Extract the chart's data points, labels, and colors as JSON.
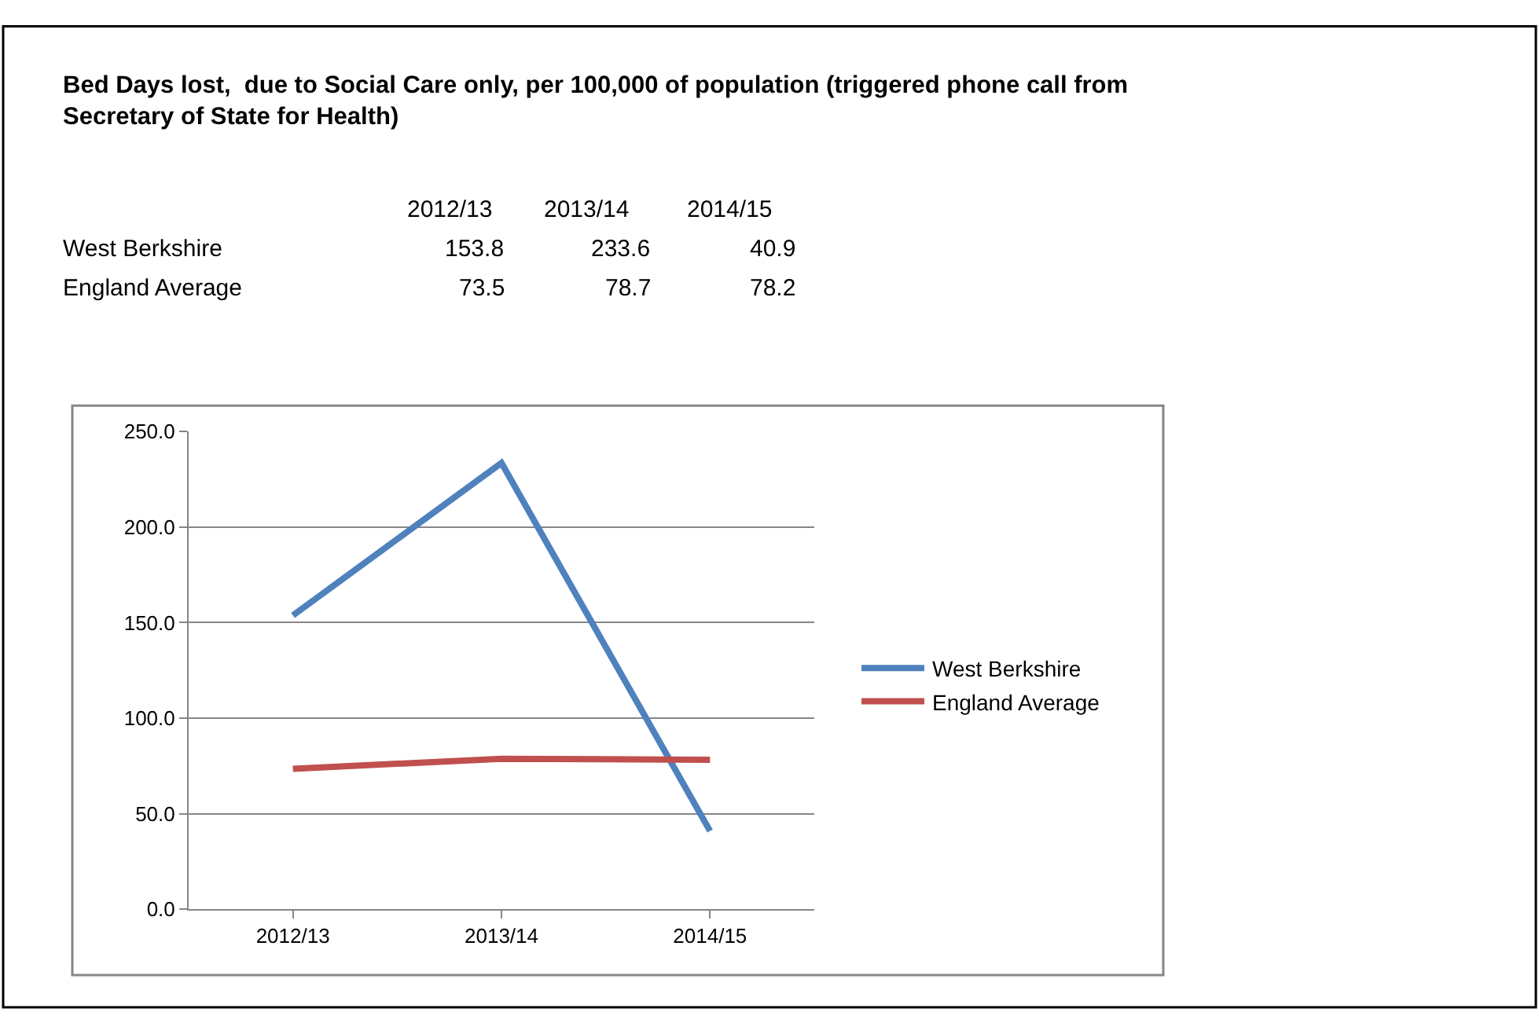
{
  "chart_data": {
    "type": "line",
    "title": "Bed Days lost,  due to Social Care only, per 100,000 of population (triggered phone call from Secretary of State for Health)",
    "categories": [
      "2012/13",
      "2013/14",
      "2014/15"
    ],
    "series": [
      {
        "name": "West Berkshire",
        "color": "#4f81bd",
        "values": [
          153.8,
          233.6,
          40.9
        ]
      },
      {
        "name": "England Average",
        "color": "#c0504d",
        "values": [
          73.5,
          78.7,
          78.2
        ]
      }
    ],
    "ylim": [
      0,
      250
    ],
    "yticks": [
      {
        "value": 0,
        "label": "0.0"
      },
      {
        "value": 50,
        "label": "50.0"
      },
      {
        "value": 100,
        "label": "100.0"
      },
      {
        "value": 150,
        "label": "150.0"
      },
      {
        "value": 200,
        "label": "200.0"
      },
      {
        "value": 250,
        "label": "250.0"
      }
    ],
    "annotations": [
      "2012/13",
      "2013/14",
      "2014/15",
      "West Berkshire",
      "153.8",
      "233.6",
      "40.9",
      "England Average",
      "73.5",
      "78.7",
      "78.2"
    ],
    "grid": "y",
    "legend": "right",
    "marker": "none",
    "line_style": "solid"
  }
}
